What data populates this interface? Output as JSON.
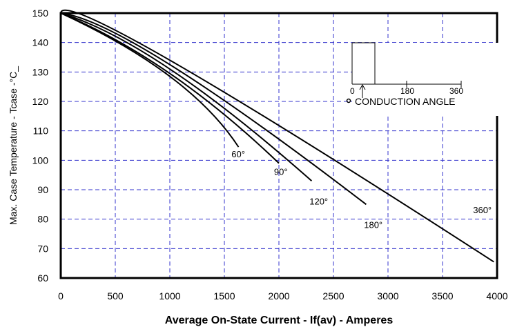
{
  "chart_data": {
    "type": "line",
    "title": "",
    "xlabel": "Average On-State Current - If(av) - Amperes",
    "ylabel": "Max. Case Temperature - Tcase -°C_",
    "xlim": [
      0,
      4000
    ],
    "ylim": [
      60,
      150
    ],
    "xticks": [
      0,
      500,
      1000,
      1500,
      2000,
      2500,
      3000,
      3500,
      4000
    ],
    "yticks": [
      60,
      70,
      80,
      90,
      100,
      110,
      120,
      130,
      140,
      150
    ],
    "xtick_labels": [
      "0",
      "500",
      "1000",
      "1500",
      "2000",
      "2500",
      "3000",
      "3500",
      "4000"
    ],
    "ytick_labels": [
      "60",
      "70",
      "80",
      "90",
      "100",
      "110",
      "120",
      "130",
      "140",
      "150"
    ],
    "grid": true,
    "grid_color": "#3333cc",
    "grid_style": "dashed",
    "line_color": "#000000",
    "series": [
      {
        "name": "60°",
        "label_at": [
          1565,
          101
        ],
        "x": [
          0,
          1000,
          1630
        ],
        "y": [
          150,
          128.5,
          104.5
        ]
      },
      {
        "name": "90°",
        "label_at": [
          1955,
          95
        ],
        "x": [
          0,
          1000,
          2000
        ],
        "y": [
          150,
          129.5,
          99
        ]
      },
      {
        "name": "120°",
        "label_at": [
          2280,
          85
        ],
        "x": [
          0,
          1000,
          2300
        ],
        "y": [
          150,
          131,
          93
        ]
      },
      {
        "name": "180°",
        "label_at": [
          2780,
          77
        ],
        "x": [
          0,
          1000,
          2800
        ],
        "y": [
          150,
          132.5,
          85
        ]
      },
      {
        "name": "360°",
        "label_at": [
          3780,
          82
        ],
        "x": [
          0,
          1000,
          3970
        ],
        "y": [
          150,
          134,
          65.5
        ]
      }
    ],
    "inset": {
      "ticks": [
        {
          "label": "0",
          "x": 0
        },
        {
          "label": "180",
          "x": 180
        },
        {
          "label": "360",
          "x": 360
        }
      ],
      "caption": "CONDUCTION ANGLE"
    }
  }
}
